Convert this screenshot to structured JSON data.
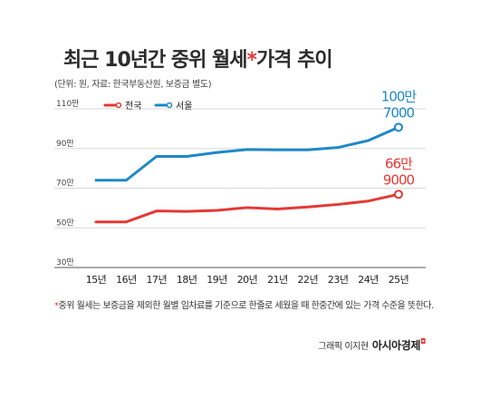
{
  "title": {
    "main": "최근 10년간 중위 월세",
    "star": "*",
    "rest": "가격 추이"
  },
  "subtitle": "(단위: 원, 자료: 한국부동산원, 보증금 별도)",
  "chart_data": {
    "type": "line",
    "x": [
      "15년",
      "16년",
      "17년",
      "18년",
      "19년",
      "20년",
      "21년",
      "22년",
      "23년",
      "24년",
      "25년"
    ],
    "ylim": [
      30,
      110
    ],
    "yticks": [
      "30만",
      "50만",
      "70만",
      "90만",
      "110만"
    ],
    "ytick_values": [
      30,
      50,
      70,
      90,
      110
    ],
    "legend_position": "top-left",
    "series": [
      {
        "name": "전국",
        "color": "#e53935",
        "values": [
          53,
          53,
          58.5,
          58.3,
          58.8,
          60.2,
          59.5,
          60.5,
          61.8,
          63.5,
          66.9
        ],
        "end_label": [
          "66만",
          "9000"
        ]
      },
      {
        "name": "서울",
        "color": "#1e88c8",
        "values": [
          74,
          74,
          86,
          86,
          88,
          89.5,
          89.3,
          89.3,
          90.5,
          94,
          100.7
        ],
        "end_label": [
          "100만",
          "7000"
        ]
      }
    ]
  },
  "footnote": {
    "star": "*",
    "text": "중위 월세는 보증금을 제외한 월별 임차료를 기준으로 한줄로 세웠을 때 한중간에 있는 가격 수준을 뜻한다."
  },
  "credit": {
    "graphic": "그래픽 이지현",
    "brand": "아시아경제",
    "mark": "◘"
  }
}
